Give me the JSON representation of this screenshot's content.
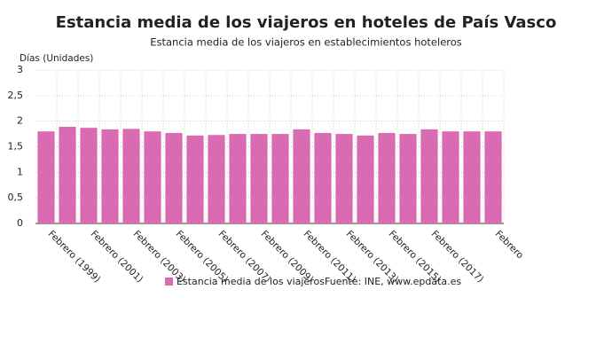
{
  "chart_data": {
    "type": "bar",
    "title": "Estancia media de los viajeros en hoteles de País Vasco",
    "subtitle": "Estancia media de los viajeros en establecimientos hoteleros",
    "y_label": "Días (Unidades)",
    "source": "Fuente: INE, www.epdata.es",
    "categories": [
      "Febrero (1999)",
      null,
      "Febrero (2001)",
      null,
      "Febrero (2003)",
      null,
      "Febrero (2005)",
      null,
      "Febrero (2007)",
      null,
      "Febrero (2009)",
      null,
      "Febrero (2011)",
      null,
      "Febrero (2013)",
      null,
      "Febrero (2015)",
      null,
      "Febrero (2017)",
      null,
      null,
      "Febrero"
    ],
    "series": [
      {
        "name": "Estancia media de los viajeros",
        "color": "#d96bb2",
        "values": [
          1.8,
          1.89,
          1.87,
          1.84,
          1.85,
          1.8,
          1.77,
          1.72,
          1.73,
          1.75,
          1.75,
          1.75,
          1.84,
          1.77,
          1.75,
          1.72,
          1.77,
          1.75,
          1.84,
          1.8,
          1.8,
          1.8
        ]
      }
    ],
    "ylim": [
      0,
      3
    ],
    "yticks": [
      0,
      {
        "value": 0.5,
        "label": "0,5"
      },
      1,
      {
        "value": 1.5,
        "label": "1,5"
      },
      2,
      {
        "value": 2.5,
        "label": "2,5"
      },
      3
    ],
    "grid": true
  }
}
